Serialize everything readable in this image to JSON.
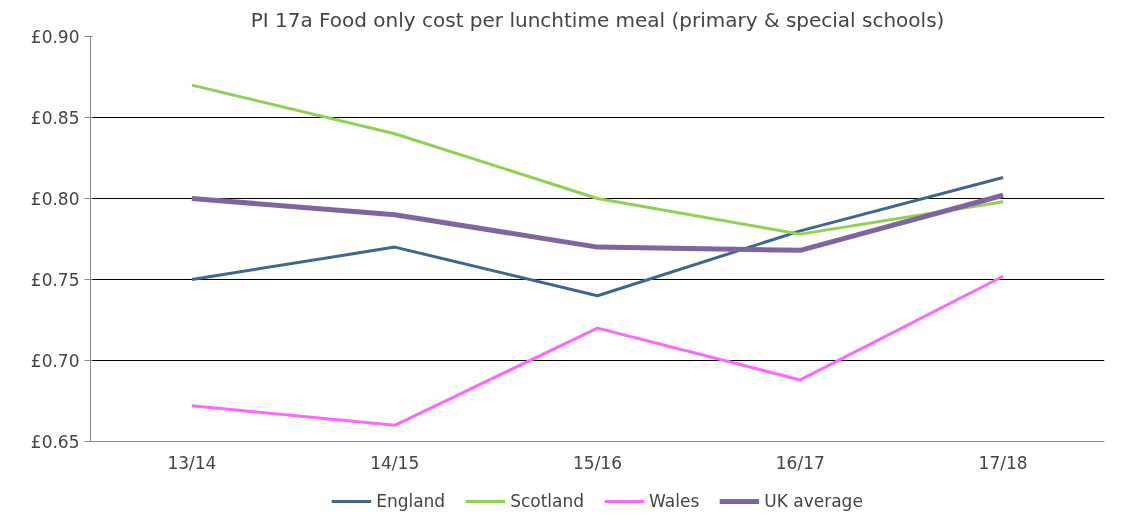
{
  "chart_data": {
    "type": "line",
    "title": "PI 17a Food only cost per lunchtime meal (primary & special schools)",
    "categories": [
      "13/14",
      "14/15",
      "15/16",
      "16/17",
      "17/18"
    ],
    "series": [
      {
        "name": "England",
        "color": "#3f6593",
        "values": [
          0.75,
          0.77,
          0.74,
          0.78,
          0.813
        ]
      },
      {
        "name": "Scotland",
        "color": "#92d050",
        "values": [
          0.87,
          0.84,
          0.8,
          0.778,
          0.798
        ]
      },
      {
        "name": "Wales",
        "color": "#ff66ff",
        "values": [
          0.672,
          0.66,
          0.72,
          0.688,
          0.752
        ]
      },
      {
        "name": "UK average",
        "color": "#8064a2",
        "values": [
          0.8,
          0.79,
          0.77,
          0.768,
          0.802
        ]
      }
    ],
    "ylim": [
      0.65,
      0.9
    ],
    "yticks": [
      {
        "value": 0.65,
        "label": "£0.65"
      },
      {
        "value": 0.7,
        "label": "£0.70"
      },
      {
        "value": 0.75,
        "label": "£0.75"
      },
      {
        "value": 0.8,
        "label": "£0.80"
      },
      {
        "value": 0.85,
        "label": "£0.85"
      },
      {
        "value": 0.9,
        "label": "£0.90"
      }
    ],
    "grid": "y",
    "legend": "bottom",
    "marker": "none",
    "line_style": "solid"
  }
}
